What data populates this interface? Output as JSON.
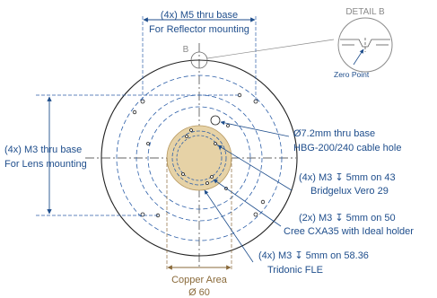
{
  "colors": {
    "annotation": "#1f4e8c",
    "outline": "#222222",
    "copper_fill": "#e6d2a6",
    "copper_text": "#8a6a3a",
    "detail_gray": "#8a8a8a"
  },
  "labels": {
    "m5_qty": "(4x) M5 thru base",
    "m5_use": "For Reflector mounting",
    "m3_lens_qty": "(4x) M3 thru base",
    "m3_lens_use": "For Lens mounting",
    "cable_hole_dia": "Ø7.2mm thru base",
    "cable_hole_use": "HBG-200/240 cable hole",
    "vero_spec": "(4x) M3 ↧ 5mm on 43",
    "vero_use": "Bridgelux Vero 29",
    "cxa_spec": "(2x) M3 ↧ 5mm on 50",
    "cxa_use": "Cree CXA35 with Ideal holder",
    "fle_spec": "(4x) M3 ↧ 5mm on 58.36",
    "fle_use": "Tridonic FLE",
    "copper_area": "Copper Area",
    "copper_dia": "Ø 60",
    "detail_ref": "B",
    "detail_title": "DETAIL B",
    "zero_point": "Zero Point"
  }
}
